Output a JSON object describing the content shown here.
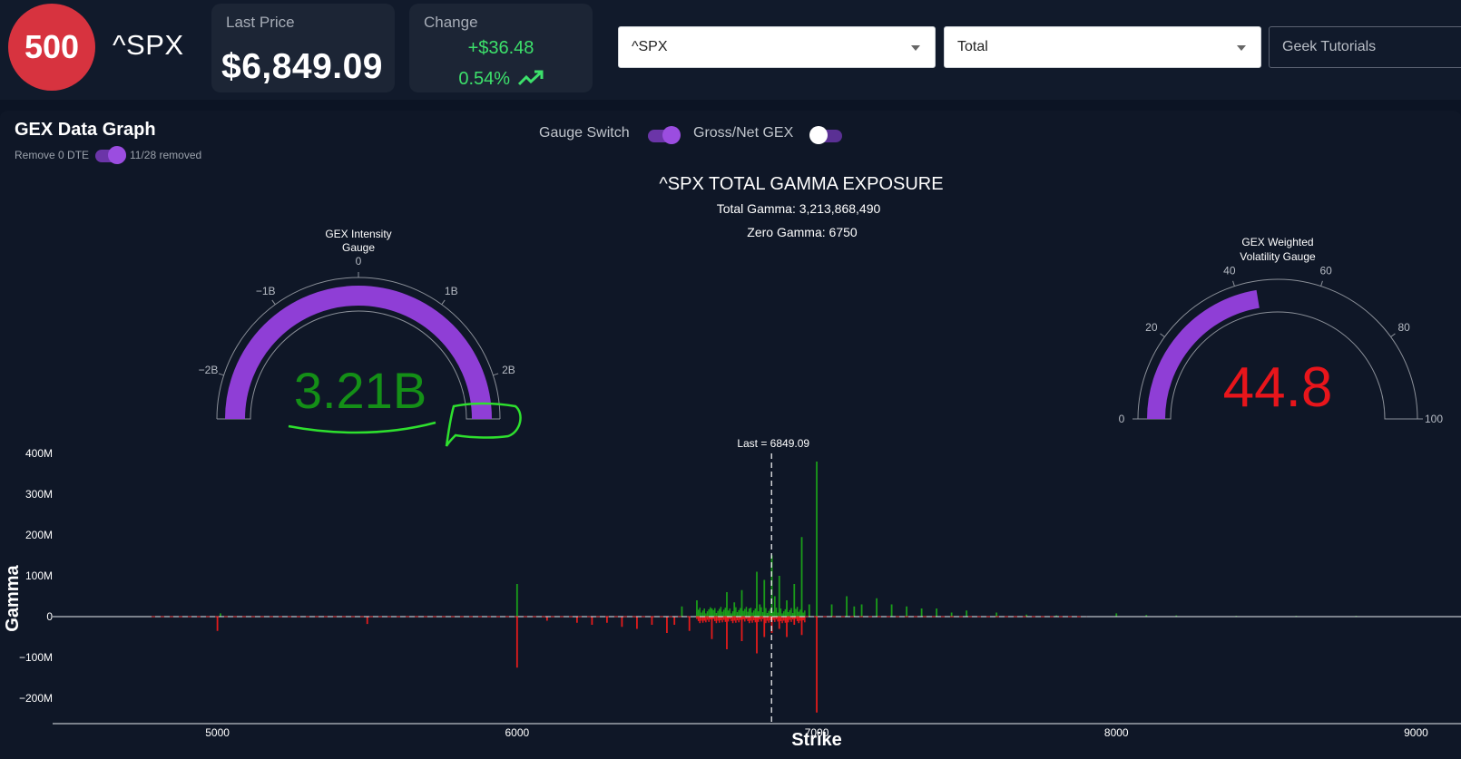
{
  "header": {
    "logo_text": "500",
    "ticker": "^SPX",
    "last_price_label": "Last Price",
    "last_price": "$6,849.09",
    "change_label": "Change",
    "change_value": "+$36.48",
    "change_percent": "0.54%",
    "change_icon": "trending-up-icon",
    "symbol_select": "^SPX",
    "type_select": "Total",
    "tutorials_button": "Geek Tutorials"
  },
  "panel": {
    "title": "GEX Data Graph",
    "remove_dte_label": "Remove 0 DTE",
    "removed_text": "11/28 removed",
    "gauge_switch_label": "Gauge Switch",
    "gross_net_label": "Gross/Net GEX",
    "accent_color": "#8f3ed6"
  },
  "chart": {
    "title": "^SPX TOTAL GAMMA EXPOSURE",
    "total_gamma": "Total Gamma: 3,213,868,490",
    "zero_gamma": "Zero Gamma: 6750",
    "last_label": "Last = 6849.09"
  },
  "intensity_gauge": {
    "title_line1": "GEX Intensity",
    "title_line2": "Gauge",
    "value_text": "3.21B",
    "value": 3.21,
    "range": [
      -2.5,
      2.5
    ],
    "ticks": [
      "−2B",
      "−1B",
      "0",
      "1B",
      "2B"
    ],
    "value_color": "#148f17"
  },
  "volatility_gauge": {
    "title_line1": "GEX Weighted",
    "title_line2": "Volatility Gauge",
    "value_text": "44.8",
    "value": 44.8,
    "range": [
      0,
      100
    ],
    "ticks": [
      "0",
      "20",
      "40",
      "60",
      "80",
      "100"
    ],
    "value_color": "#e8151b"
  },
  "chart_data": {
    "type": "bar",
    "title": "^SPX TOTAL GAMMA EXPOSURE",
    "xlabel": "Strike",
    "ylabel": "Gamma",
    "xlim": [
      4450,
      9150
    ],
    "ylim": [
      -260,
      400
    ],
    "x_ticks": [
      "5000",
      "6000",
      "7000",
      "8000",
      "9000"
    ],
    "y_ticks": [
      "400M",
      "300M",
      "200M",
      "100M",
      "0",
      "−100M",
      "−200M"
    ],
    "y_tick_values": [
      400,
      300,
      200,
      100,
      0,
      -100,
      -200
    ],
    "last_price": 6849.09,
    "positive_color": "#1a9c1a",
    "negative_color": "#e31b1b",
    "series": [
      {
        "values_unit": "M",
        "points": [
          [
            5000,
            -35
          ],
          [
            5010,
            8
          ],
          [
            5500,
            -18
          ],
          [
            6000,
            80
          ],
          [
            6000,
            -125
          ],
          [
            6100,
            -10
          ],
          [
            6200,
            -15
          ],
          [
            6250,
            -20
          ],
          [
            6300,
            -15
          ],
          [
            6350,
            -25
          ],
          [
            6400,
            -30
          ],
          [
            6450,
            -20
          ],
          [
            6500,
            -40
          ],
          [
            6525,
            -20
          ],
          [
            6550,
            25
          ],
          [
            6575,
            -35
          ],
          [
            6600,
            40
          ],
          [
            6625,
            -10
          ],
          [
            6650,
            20
          ],
          [
            6650,
            -55
          ],
          [
            6700,
            60
          ],
          [
            6700,
            -80
          ],
          [
            6725,
            35
          ],
          [
            6750,
            65
          ],
          [
            6750,
            -60
          ],
          [
            6775,
            20
          ],
          [
            6800,
            110
          ],
          [
            6800,
            -90
          ],
          [
            6810,
            30
          ],
          [
            6825,
            90
          ],
          [
            6825,
            -50
          ],
          [
            6850,
            150
          ],
          [
            6850,
            -40
          ],
          [
            6860,
            50
          ],
          [
            6875,
            100
          ],
          [
            6875,
            -30
          ],
          [
            6900,
            40
          ],
          [
            6900,
            -50
          ],
          [
            6925,
            80
          ],
          [
            6925,
            -20
          ],
          [
            6950,
            195
          ],
          [
            6950,
            -45
          ],
          [
            6975,
            30
          ],
          [
            7000,
            380
          ],
          [
            7000,
            -235
          ],
          [
            7050,
            30
          ],
          [
            7100,
            50
          ],
          [
            7125,
            25
          ],
          [
            7150,
            30
          ],
          [
            7200,
            45
          ],
          [
            7250,
            30
          ],
          [
            7300,
            25
          ],
          [
            7350,
            20
          ],
          [
            7400,
            20
          ],
          [
            7450,
            10
          ],
          [
            7500,
            15
          ],
          [
            7600,
            10
          ],
          [
            7700,
            5
          ],
          [
            7800,
            3
          ],
          [
            8000,
            8
          ],
          [
            8100,
            4
          ],
          [
            8200,
            3
          ],
          [
            8400,
            2
          ],
          [
            8600,
            2
          ],
          [
            8800,
            2
          ]
        ]
      }
    ]
  }
}
